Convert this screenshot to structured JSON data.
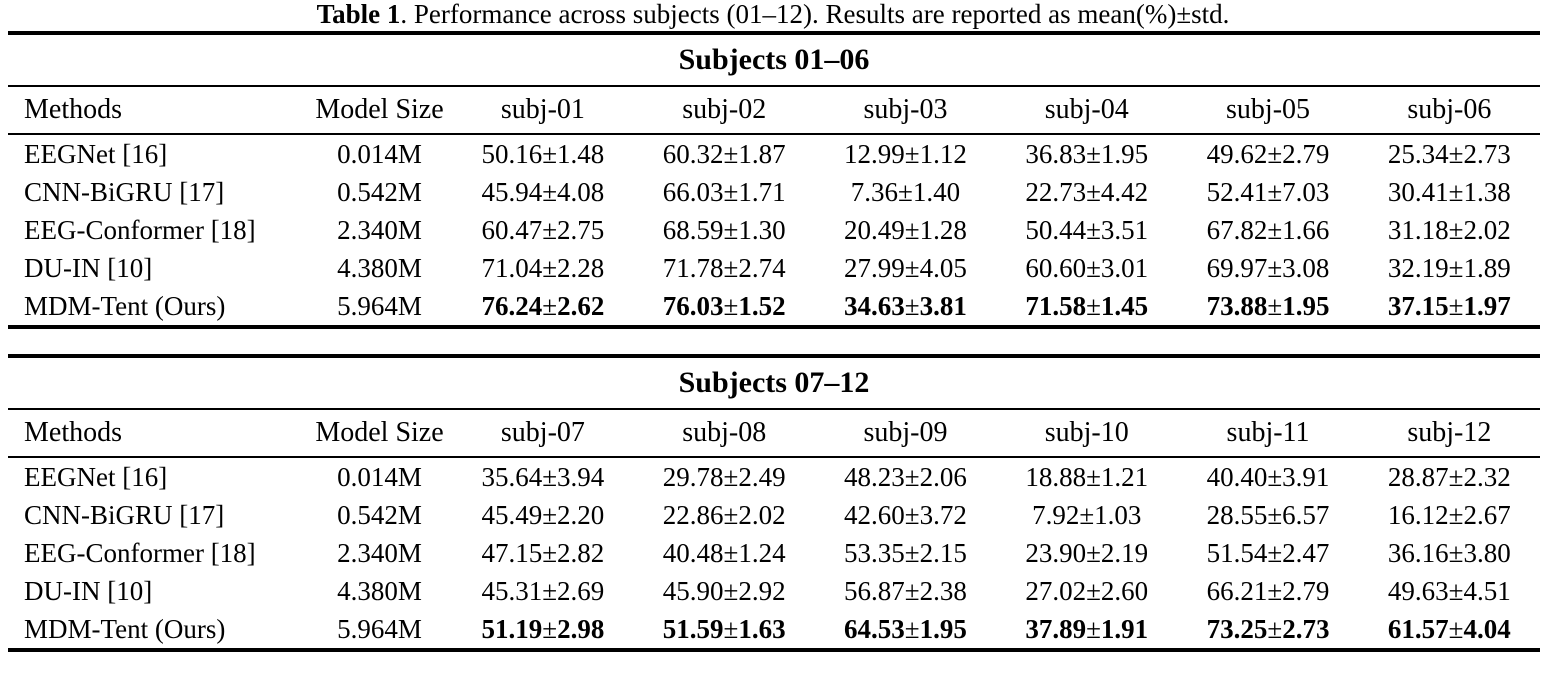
{
  "caption": {
    "label": "Table 1",
    "text": ". Performance across subjects (01–12). Results are reported as mean(%)±std."
  },
  "tables": [
    {
      "section_title": "Subjects 01–06",
      "columns": [
        "Methods",
        "Model Size",
        "subj-01",
        "subj-02",
        "subj-03",
        "subj-04",
        "subj-05",
        "subj-06"
      ],
      "rows": [
        {
          "method": "EEGNet [16]",
          "model_size": "0.014M",
          "bold": false,
          "values": [
            "50.16±1.48",
            "60.32±1.87",
            "12.99±1.12",
            "36.83±1.95",
            "49.62±2.79",
            "25.34±2.73"
          ]
        },
        {
          "method": "CNN-BiGRU [17]",
          "model_size": "0.542M",
          "bold": false,
          "values": [
            "45.94±4.08",
            "66.03±1.71",
            "7.36±1.40",
            "22.73±4.42",
            "52.41±7.03",
            "30.41±1.38"
          ]
        },
        {
          "method": "EEG-Conformer [18]",
          "model_size": "2.340M",
          "bold": false,
          "values": [
            "60.47±2.75",
            "68.59±1.30",
            "20.49±1.28",
            "50.44±3.51",
            "67.82±1.66",
            "31.18±2.02"
          ]
        },
        {
          "method": "DU-IN [10]",
          "model_size": "4.380M",
          "bold": false,
          "values": [
            "71.04±2.28",
            "71.78±2.74",
            "27.99±4.05",
            "60.60±3.01",
            "69.97±3.08",
            "32.19±1.89"
          ]
        },
        {
          "method": "MDM-Tent (Ours)",
          "model_size": "5.964M",
          "bold": true,
          "values": [
            "76.24±2.62",
            "76.03±1.52",
            "34.63±3.81",
            "71.58±1.45",
            "73.88±1.95",
            "37.15±1.97"
          ]
        }
      ]
    },
    {
      "section_title": "Subjects 07–12",
      "columns": [
        "Methods",
        "Model Size",
        "subj-07",
        "subj-08",
        "subj-09",
        "subj-10",
        "subj-11",
        "subj-12"
      ],
      "rows": [
        {
          "method": "EEGNet [16]",
          "model_size": "0.014M",
          "bold": false,
          "values": [
            "35.64±3.94",
            "29.78±2.49",
            "48.23±2.06",
            "18.88±1.21",
            "40.40±3.91",
            "28.87±2.32"
          ]
        },
        {
          "method": "CNN-BiGRU [17]",
          "model_size": "0.542M",
          "bold": false,
          "values": [
            "45.49±2.20",
            "22.86±2.02",
            "42.60±3.72",
            "7.92±1.03",
            "28.55±6.57",
            "16.12±2.67"
          ]
        },
        {
          "method": "EEG-Conformer [18]",
          "model_size": "2.340M",
          "bold": false,
          "values": [
            "47.15±2.82",
            "40.48±1.24",
            "53.35±2.15",
            "23.90±2.19",
            "51.54±2.47",
            "36.16±3.80"
          ]
        },
        {
          "method": "DU-IN [10]",
          "model_size": "4.380M",
          "bold": false,
          "values": [
            "45.31±2.69",
            "45.90±2.92",
            "56.87±2.38",
            "27.02±2.60",
            "66.21±2.79",
            "49.63±4.51"
          ]
        },
        {
          "method": "MDM-Tent (Ours)",
          "model_size": "5.964M",
          "bold": true,
          "values": [
            "51.19±2.98",
            "51.59±1.63",
            "64.53±1.95",
            "37.89±1.91",
            "73.25±2.73",
            "61.57±4.04"
          ]
        }
      ]
    }
  ]
}
